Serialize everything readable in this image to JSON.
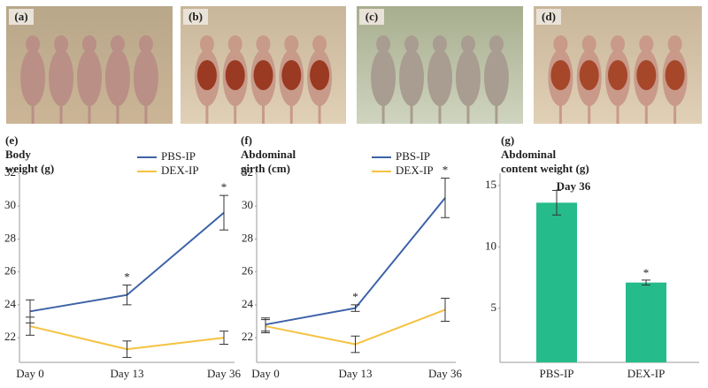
{
  "photo_panels": [
    "(a)",
    "(b)",
    "(c)",
    "(d)"
  ],
  "chart_data": [
    {
      "type": "line",
      "label": "(e)",
      "ylabel_lines": [
        "Body",
        "weight (g)"
      ],
      "categories": [
        "Day 0",
        "Day 13",
        "Day 36"
      ],
      "series": [
        {
          "name": "PBS-IP",
          "color": "#3e63a8",
          "values": [
            23.6,
            24.6,
            29.6
          ],
          "errors": [
            0.7,
            0.6,
            1.05
          ],
          "significance": [
            null,
            "*",
            "*"
          ]
        },
        {
          "name": "DEX-IP",
          "color": "#f5c242",
          "values": [
            22.7,
            21.3,
            22.0
          ],
          "errors": [
            0.55,
            0.5,
            0.4
          ],
          "significance": [
            null,
            null,
            null
          ]
        }
      ],
      "ylim": [
        20.5,
        32
      ],
      "yticks": [
        22,
        24,
        26,
        28,
        30,
        32
      ],
      "legend": true
    },
    {
      "type": "line",
      "label": "(f)",
      "ylabel_lines": [
        "Abdominal",
        "girth (cm)"
      ],
      "categories": [
        "Day 0",
        "Day 13",
        "Day 36"
      ],
      "series": [
        {
          "name": "PBS-IP",
          "color": "#3e63a8",
          "values": [
            22.8,
            23.8,
            30.5
          ],
          "errors": [
            0.4,
            0.2,
            1.2
          ],
          "significance": [
            null,
            "*",
            "*"
          ]
        },
        {
          "name": "DEX-IP",
          "color": "#f5c242",
          "values": [
            22.7,
            21.6,
            23.7
          ],
          "errors": [
            0.4,
            0.5,
            0.7
          ],
          "significance": [
            null,
            null,
            null
          ]
        }
      ],
      "ylim": [
        20.5,
        32
      ],
      "yticks": [
        22,
        24,
        26,
        28,
        30,
        32
      ],
      "legend": true
    },
    {
      "type": "bar",
      "label": "(g)",
      "ylabel_lines": [
        "Abdominal",
        "content weight (g)"
      ],
      "subtitle": "Day 36",
      "categories": [
        "PBS-IP",
        "DEX-IP"
      ],
      "values": [
        13.6,
        7.1
      ],
      "errors": [
        1.0,
        0.2
      ],
      "significance": [
        null,
        "*"
      ],
      "color": "#26bb8a",
      "ylim": [
        0.6,
        16
      ],
      "yticks": [
        5,
        10,
        15
      ]
    }
  ]
}
